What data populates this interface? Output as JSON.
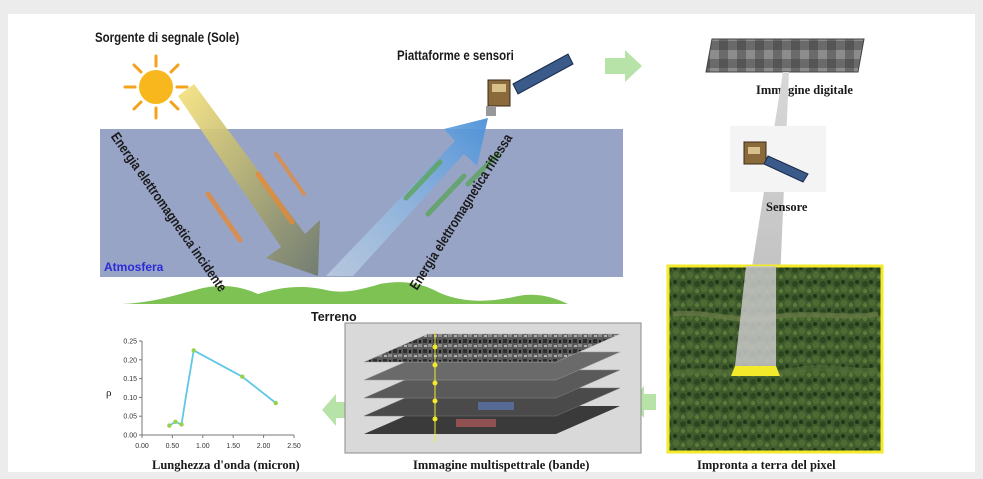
{
  "labels": {
    "source": "Sorgente di segnale (Sole)",
    "platforms": "Piattaforme e sensori",
    "incident": "Energia elettromagnetica incidente",
    "reflected": "Energia elettromagnetica riflessa",
    "atmosphere": "Atmosfera",
    "terrain": "Terreno",
    "digital_image": "Immagine digitale",
    "sensor": "Sensore",
    "footprint": "Impronta a terra del pixel",
    "multispectral": "Immagine multispettrale (bande)"
  },
  "colors": {
    "atmosphere": "#98a4c6",
    "atmosphere_label": "#2a2ad8",
    "terrain": "#7dc253",
    "flow_arrow": "#b8e3a8",
    "footprint_border": "#f2ea2a",
    "spectrum_line": "#5ec8e6"
  },
  "chart_data": {
    "type": "line",
    "xlabel": "Lunghezza d'onda (micron)",
    "ylabel": "ρ",
    "xlim": [
      0,
      2.5
    ],
    "ylim": [
      0,
      0.25
    ],
    "xticks": [
      "0.00",
      "0.50",
      "1.00",
      "1.50",
      "2.00",
      "2.50"
    ],
    "yticks": [
      "0.00",
      "0.05",
      "0.10",
      "0.15",
      "0.20",
      "0.25"
    ],
    "series": [
      {
        "x": [
          0.45,
          0.55,
          0.65,
          0.72,
          0.85,
          1.65,
          2.2
        ],
        "y": [
          0.025,
          0.035,
          0.028,
          0.1,
          0.225,
          0.155,
          0.085
        ]
      }
    ],
    "markers": [
      {
        "x": 0.45,
        "y": 0.025
      },
      {
        "x": 0.55,
        "y": 0.035
      },
      {
        "x": 0.65,
        "y": 0.028
      },
      {
        "x": 0.85,
        "y": 0.225
      },
      {
        "x": 1.65,
        "y": 0.155
      },
      {
        "x": 2.2,
        "y": 0.085
      }
    ],
    "grid": false
  }
}
